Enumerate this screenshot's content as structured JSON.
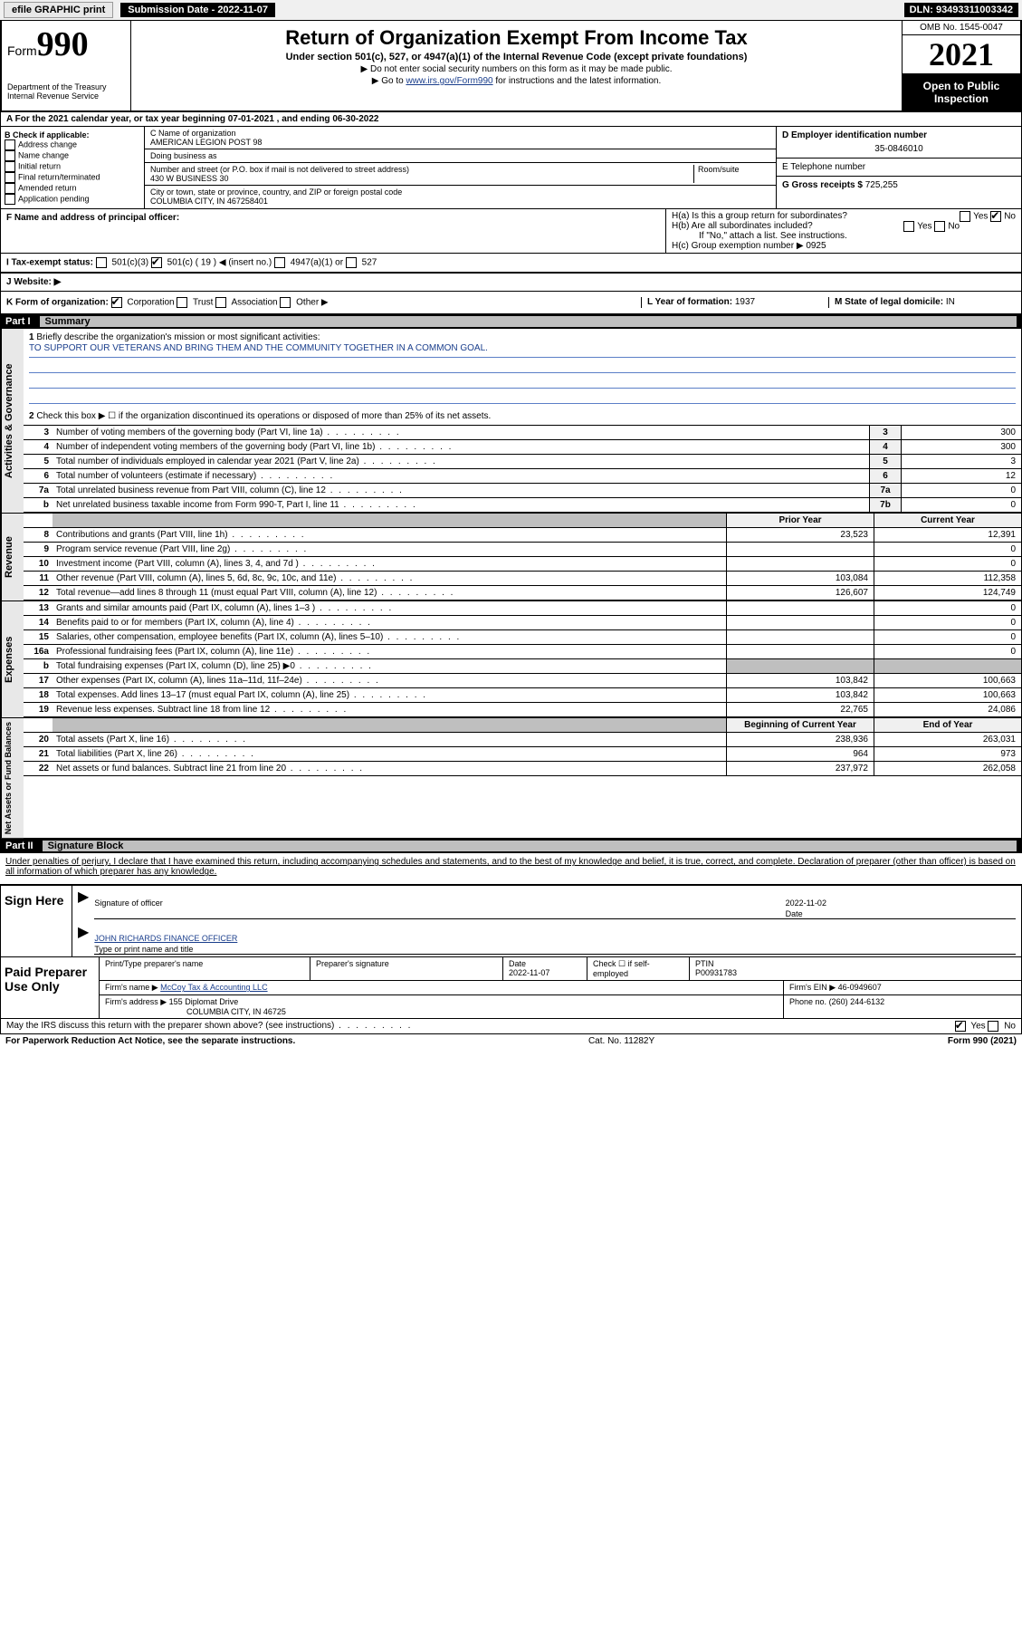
{
  "top_bar": {
    "efile": "efile GRAPHIC print",
    "submission_label": "Submission Date - 2022-11-07",
    "dln": "DLN: 93493311003342"
  },
  "header": {
    "form_label": "Form",
    "form_number": "990",
    "title": "Return of Organization Exempt From Income Tax",
    "subtitle": "Under section 501(c), 527, or 4947(a)(1) of the Internal Revenue Code (except private foundations)",
    "note1": "▶ Do not enter social security numbers on this form as it may be made public.",
    "note2_pre": "▶ Go to ",
    "note2_link": "www.irs.gov/Form990",
    "note2_post": " for instructions and the latest information.",
    "dept": "Department of the Treasury\nInternal Revenue Service",
    "omb": "OMB No. 1545-0047",
    "year": "2021",
    "open_public": "Open to Public Inspection"
  },
  "section_a": {
    "cal_year": "A For the 2021 calendar year, or tax year beginning 07-01-2021   , and ending 06-30-2022",
    "b_label": "B Check if applicable:",
    "b_items": [
      "Address change",
      "Name change",
      "Initial return",
      "Final return/terminated",
      "Amended return",
      "Application pending"
    ],
    "c_name_label": "C Name of organization",
    "c_name": "AMERICAN LEGION POST 98",
    "dba_label": "Doing business as",
    "dba": "",
    "addr_label": "Number and street (or P.O. box if mail is not delivered to street address)",
    "room_label": "Room/suite",
    "addr": "430 W BUSINESS 30",
    "city_label": "City or town, state or province, country, and ZIP or foreign postal code",
    "city": "COLUMBIA CITY, IN  467258401",
    "d_label": "D Employer identification number",
    "d_ein": "35-0846010",
    "e_label": "E Telephone number",
    "e_phone": "",
    "g_label": "G Gross receipts $",
    "g_amount": "725,255",
    "f_label": "F  Name and address of principal officer:",
    "ha_label": "H(a)  Is this a group return for subordinates?",
    "hb_label": "H(b)  Are all subordinates included?",
    "hb_note": "If \"No,\" attach a list. See instructions.",
    "hc_label": "H(c)  Group exemption number ▶",
    "hc_value": "0925",
    "i_label": "I  Tax-exempt status:",
    "i_insert": "( 19 ) ◀ (insert no.)",
    "j_label": "J  Website: ▶",
    "k_label": "K Form of organization:",
    "k_items": [
      "Corporation",
      "Trust",
      "Association",
      "Other ▶"
    ],
    "l_label": "L Year of formation:",
    "l_value": "1937",
    "m_label": "M State of legal domicile:",
    "m_value": "IN"
  },
  "part1": {
    "label": "Part I",
    "title": "Summary"
  },
  "governance": {
    "vert": "Activities & Governance",
    "line1_label": "Briefly describe the organization's mission or most significant activities:",
    "line1_text": "TO SUPPORT OUR VETERANS AND BRING THEM AND THE COMMUNITY TOGETHER IN A COMMON GOAL.",
    "line2": "Check this box ▶ ☐  if the organization discontinued its operations or disposed of more than 25% of its net assets.",
    "rows": [
      {
        "n": "3",
        "desc": "Number of voting members of the governing body (Part VI, line 1a)",
        "box": "3",
        "val": "300"
      },
      {
        "n": "4",
        "desc": "Number of independent voting members of the governing body (Part VI, line 1b)",
        "box": "4",
        "val": "300"
      },
      {
        "n": "5",
        "desc": "Total number of individuals employed in calendar year 2021 (Part V, line 2a)",
        "box": "5",
        "val": "3"
      },
      {
        "n": "6",
        "desc": "Total number of volunteers (estimate if necessary)",
        "box": "6",
        "val": "12"
      },
      {
        "n": "7a",
        "desc": "Total unrelated business revenue from Part VIII, column (C), line 12",
        "box": "7a",
        "val": "0"
      },
      {
        "n": "b",
        "desc": "Net unrelated business taxable income from Form 990-T, Part I, line 11",
        "box": "7b",
        "val": "0"
      }
    ]
  },
  "revenue": {
    "vert": "Revenue",
    "head_prior": "Prior Year",
    "head_current": "Current Year",
    "rows": [
      {
        "n": "8",
        "desc": "Contributions and grants (Part VIII, line 1h)",
        "a": "23,523",
        "b": "12,391"
      },
      {
        "n": "9",
        "desc": "Program service revenue (Part VIII, line 2g)",
        "a": "",
        "b": "0"
      },
      {
        "n": "10",
        "desc": "Investment income (Part VIII, column (A), lines 3, 4, and 7d )",
        "a": "",
        "b": "0"
      },
      {
        "n": "11",
        "desc": "Other revenue (Part VIII, column (A), lines 5, 6d, 8c, 9c, 10c, and 11e)",
        "a": "103,084",
        "b": "112,358"
      },
      {
        "n": "12",
        "desc": "Total revenue—add lines 8 through 11 (must equal Part VIII, column (A), line 12)",
        "a": "126,607",
        "b": "124,749"
      }
    ]
  },
  "expenses": {
    "vert": "Expenses",
    "rows": [
      {
        "n": "13",
        "desc": "Grants and similar amounts paid (Part IX, column (A), lines 1–3 )",
        "a": "",
        "b": "0"
      },
      {
        "n": "14",
        "desc": "Benefits paid to or for members (Part IX, column (A), line 4)",
        "a": "",
        "b": "0"
      },
      {
        "n": "15",
        "desc": "Salaries, other compensation, employee benefits (Part IX, column (A), lines 5–10)",
        "a": "",
        "b": "0"
      },
      {
        "n": "16a",
        "desc": "Professional fundraising fees (Part IX, column (A), line 11e)",
        "a": "",
        "b": "0"
      },
      {
        "n": "b",
        "desc": "Total fundraising expenses (Part IX, column (D), line 25) ▶0",
        "a": "shaded",
        "b": "shaded"
      },
      {
        "n": "17",
        "desc": "Other expenses (Part IX, column (A), lines 11a–11d, 11f–24e)",
        "a": "103,842",
        "b": "100,663"
      },
      {
        "n": "18",
        "desc": "Total expenses. Add lines 13–17 (must equal Part IX, column (A), line 25)",
        "a": "103,842",
        "b": "100,663"
      },
      {
        "n": "19",
        "desc": "Revenue less expenses. Subtract line 18 from line 12",
        "a": "22,765",
        "b": "24,086"
      }
    ]
  },
  "netassets": {
    "vert": "Net Assets or Fund Balances",
    "head_begin": "Beginning of Current Year",
    "head_end": "End of Year",
    "rows": [
      {
        "n": "20",
        "desc": "Total assets (Part X, line 16)",
        "a": "238,936",
        "b": "263,031"
      },
      {
        "n": "21",
        "desc": "Total liabilities (Part X, line 26)",
        "a": "964",
        "b": "973"
      },
      {
        "n": "22",
        "desc": "Net assets or fund balances. Subtract line 21 from line 20",
        "a": "237,972",
        "b": "262,058"
      }
    ]
  },
  "part2": {
    "label": "Part II",
    "title": "Signature Block",
    "declaration": "Under penalties of perjury, I declare that I have examined this return, including accompanying schedules and statements, and to the best of my knowledge and belief, it is true, correct, and complete. Declaration of preparer (other than officer) is based on all information of which preparer has any knowledge."
  },
  "sign": {
    "label": "Sign Here",
    "sig_officer": "Signature of officer",
    "date": "2022-11-02",
    "date_label": "Date",
    "name": "JOHN RICHARDS FINANCE OFFICER",
    "name_label": "Type or print name and title"
  },
  "preparer": {
    "label": "Paid Preparer Use Only",
    "h_name": "Print/Type preparer's name",
    "h_sig": "Preparer's signature",
    "h_date": "Date",
    "date": "2022-11-07",
    "h_check": "Check ☐ if self-employed",
    "h_ptin": "PTIN",
    "ptin": "P00931783",
    "firm_name_label": "Firm's name     ▶",
    "firm_name": "McCoy Tax & Accounting LLC",
    "firm_ein_label": "Firm's EIN ▶",
    "firm_ein": "46-0949607",
    "firm_addr_label": "Firm's address ▶",
    "firm_addr1": "155 Diplomat Drive",
    "firm_addr2": "COLUMBIA CITY, IN  46725",
    "phone_label": "Phone no.",
    "phone": "(260) 244-6132"
  },
  "footer": {
    "discuss": "May the IRS discuss this return with the preparer shown above? (see instructions)",
    "yes": "Yes",
    "no": "No",
    "paperwork": "For Paperwork Reduction Act Notice, see the separate instructions.",
    "cat": "Cat. No. 11282Y",
    "form": "Form 990 (2021)"
  }
}
